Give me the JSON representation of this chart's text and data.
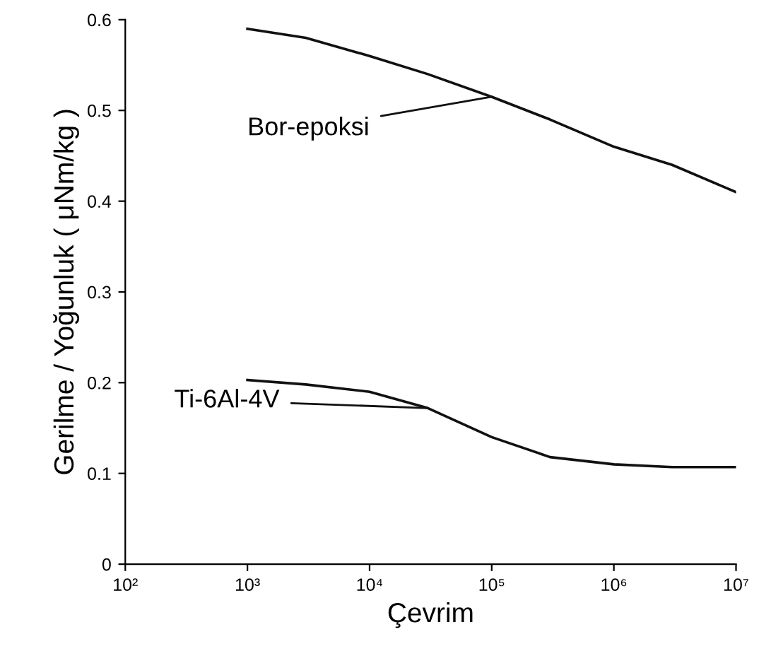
{
  "chart_data": {
    "type": "line",
    "xlabel": "Çevrim",
    "ylabel": "Gerilme / Yoğunluk ( μNm/kg )",
    "log": "x",
    "x": [
      1000,
      3000,
      10000,
      30000,
      100000,
      300000,
      1000000,
      3000000,
      10000000
    ],
    "series": [
      {
        "name": "Bor-epoksi",
        "color": "#111111",
        "values": [
          0.59,
          0.58,
          0.56,
          0.54,
          0.515,
          0.49,
          0.46,
          0.44,
          0.41
        ]
      },
      {
        "name": "Ti-6Al-4V",
        "color": "#111111",
        "values": [
          0.203,
          0.198,
          0.19,
          0.172,
          0.14,
          0.118,
          0.11,
          0.107,
          0.107
        ]
      }
    ],
    "xlim": [
      100,
      10000000
    ],
    "ylim": [
      0,
      0.6
    ],
    "xticks": [
      {
        "value": 100,
        "label": "10²"
      },
      {
        "value": 1000,
        "label": "10³"
      },
      {
        "value": 10000,
        "label": "10⁴"
      },
      {
        "value": 100000,
        "label": "10⁵"
      },
      {
        "value": 1000000,
        "label": "10⁶"
      },
      {
        "value": 10000000,
        "label": "10⁷"
      }
    ],
    "yticks": [
      0,
      0.1,
      0.2,
      0.3,
      0.4,
      0.5,
      0.6
    ],
    "grid": false,
    "marker": "none",
    "line_style": "solid"
  }
}
